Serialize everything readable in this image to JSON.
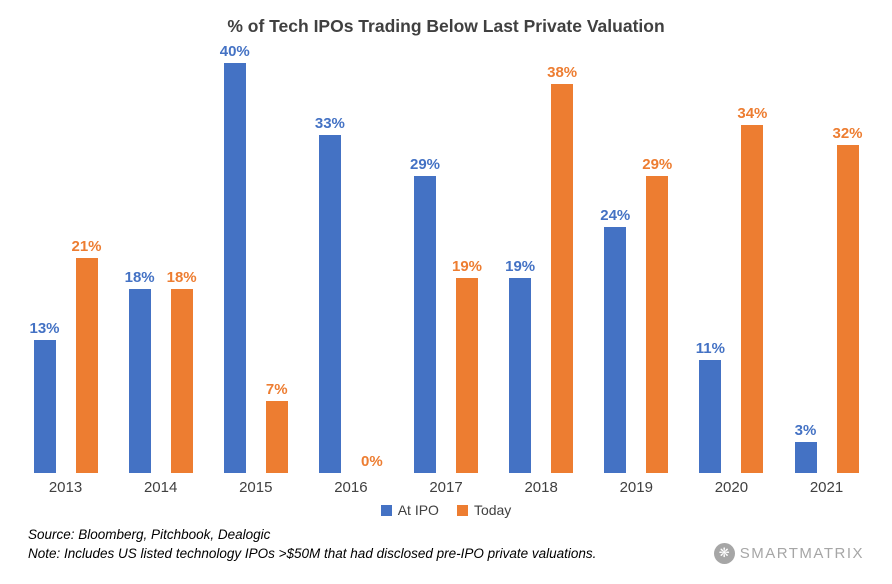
{
  "title": "% of Tech IPOs Trading Below Last Private Valuation",
  "chart_data": {
    "type": "bar",
    "title": "% of Tech IPOs Trading Below Last Private Valuation",
    "categories": [
      "2013",
      "2014",
      "2015",
      "2016",
      "2017",
      "2018",
      "2019",
      "2020",
      "2021"
    ],
    "series": [
      {
        "name": "At IPO",
        "color": "#4472C4",
        "values": [
          13,
          18,
          40,
          33,
          29,
          19,
          24,
          11,
          3
        ]
      },
      {
        "name": "Today",
        "color": "#ED7D31",
        "values": [
          21,
          18,
          7,
          0,
          19,
          38,
          29,
          34,
          32
        ]
      }
    ],
    "value_suffix": "%",
    "data_labels": true,
    "xlabel": "",
    "ylabel": "",
    "ylim": [
      0,
      42
    ],
    "grid": false,
    "legend_position": "bottom"
  },
  "footer": {
    "source": "Source: Bloomberg, Pitchbook, Dealogic",
    "note": "Note: Includes US listed technology IPOs >$50M that had disclosed pre-IPO private valuations."
  },
  "logo": {
    "text": "SMARTMATRIX",
    "icon": "snowflake-icon",
    "icon_glyph": "❋",
    "color": "#a6a6a6"
  }
}
